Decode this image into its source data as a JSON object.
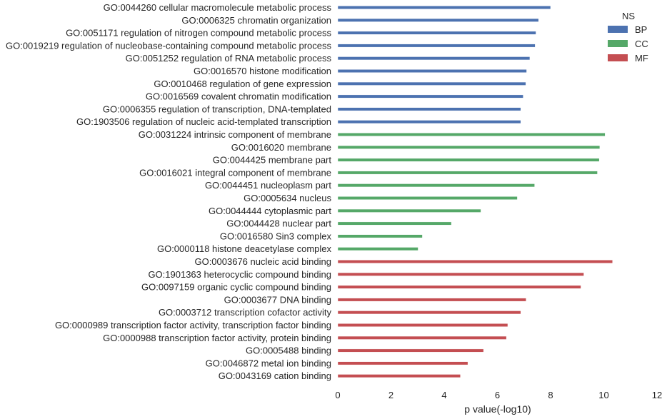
{
  "chart_data": {
    "type": "bar",
    "orientation": "horizontal",
    "xlabel": "p value(-log10)",
    "ylabel": "",
    "xlim": [
      0,
      12
    ],
    "xticks": [
      0,
      2,
      4,
      6,
      8,
      10,
      12
    ],
    "grid": false,
    "legend": {
      "title": "NS",
      "placement": "top-right",
      "entries": [
        {
          "name": "BP",
          "color": "#4c72b0"
        },
        {
          "name": "CC",
          "color": "#55a868"
        },
        {
          "name": "MF",
          "color": "#c44e52"
        }
      ]
    },
    "categories": [
      {
        "label": "GO:0044260 cellular macromolecule metabolic process",
        "group": "BP",
        "value": 8.0
      },
      {
        "label": "GO:0006325 chromatin organization",
        "group": "BP",
        "value": 7.55
      },
      {
        "label": "GO:0051171 regulation of nitrogen compound metabolic process",
        "group": "BP",
        "value": 7.45
      },
      {
        "label": "GO:0019219 regulation of nucleobase-containing compound metabolic process",
        "group": "BP",
        "value": 7.42
      },
      {
        "label": "GO:0051252 regulation of RNA metabolic process",
        "group": "BP",
        "value": 7.22
      },
      {
        "label": "GO:0016570 histone modification",
        "group": "BP",
        "value": 7.1
      },
      {
        "label": "GO:0010468 regulation of gene expression",
        "group": "BP",
        "value": 7.07
      },
      {
        "label": "GO:0016569 covalent chromatin modification",
        "group": "BP",
        "value": 6.97
      },
      {
        "label": "GO:0006355 regulation of transcription, DNA-templated",
        "group": "BP",
        "value": 6.88
      },
      {
        "label": "GO:1903506 regulation of nucleic acid-templated transcription",
        "group": "BP",
        "value": 6.88
      },
      {
        "label": "GO:0031224 intrinsic component of membrane",
        "group": "CC",
        "value": 10.05
      },
      {
        "label": "GO:0016020 membrane",
        "group": "CC",
        "value": 9.85
      },
      {
        "label": "GO:0044425 membrane part",
        "group": "CC",
        "value": 9.83
      },
      {
        "label": "GO:0016021 integral component of membrane",
        "group": "CC",
        "value": 9.76
      },
      {
        "label": "GO:0044451 nucleoplasm part",
        "group": "CC",
        "value": 7.4
      },
      {
        "label": "GO:0005634 nucleus",
        "group": "CC",
        "value": 6.75
      },
      {
        "label": "GO:0044444 cytoplasmic part",
        "group": "CC",
        "value": 5.38
      },
      {
        "label": "GO:0044428 nuclear part",
        "group": "CC",
        "value": 4.27
      },
      {
        "label": "GO:0016580 Sin3 complex",
        "group": "CC",
        "value": 3.18
      },
      {
        "label": "GO:0000118 histone deacetylase complex",
        "group": "CC",
        "value": 3.02
      },
      {
        "label": "GO:0003676 nucleic acid binding",
        "group": "MF",
        "value": 10.33
      },
      {
        "label": "GO:1901363 heterocyclic compound binding",
        "group": "MF",
        "value": 9.25
      },
      {
        "label": "GO:0097159 organic cyclic compound binding",
        "group": "MF",
        "value": 9.14
      },
      {
        "label": "GO:0003677 DNA binding",
        "group": "MF",
        "value": 7.08
      },
      {
        "label": "GO:0003712 transcription cofactor activity",
        "group": "MF",
        "value": 6.88
      },
      {
        "label": "GO:0000989 transcription factor activity, transcription factor binding",
        "group": "MF",
        "value": 6.39
      },
      {
        "label": "GO:0000988 transcription factor activity, protein binding",
        "group": "MF",
        "value": 6.34
      },
      {
        "label": "GO:0005488 binding",
        "group": "MF",
        "value": 5.48
      },
      {
        "label": "GO:0046872 metal ion binding",
        "group": "MF",
        "value": 4.89
      },
      {
        "label": "GO:0043169 cation binding",
        "group": "MF",
        "value": 4.61
      }
    ]
  }
}
